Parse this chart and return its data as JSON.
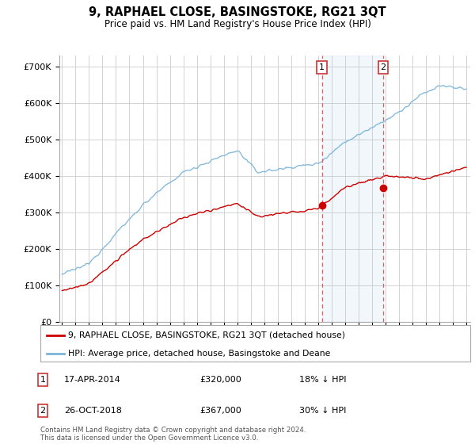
{
  "title": "9, RAPHAEL CLOSE, BASINGSTOKE, RG21 3QT",
  "subtitle": "Price paid vs. HM Land Registry's House Price Index (HPI)",
  "legend_line1": "9, RAPHAEL CLOSE, BASINGSTOKE, RG21 3QT (detached house)",
  "legend_line2": "HPI: Average price, detached house, Basingstoke and Deane",
  "annotation1_label": "1",
  "annotation1_date": "17-APR-2014",
  "annotation1_price": "£320,000",
  "annotation1_hpi": "18% ↓ HPI",
  "annotation1_year": 2014.29,
  "annotation1_value": 320000,
  "annotation2_label": "2",
  "annotation2_date": "26-OCT-2018",
  "annotation2_price": "£367,000",
  "annotation2_hpi": "30% ↓ HPI",
  "annotation2_year": 2018.83,
  "annotation2_value": 367000,
  "footer": "Contains HM Land Registry data © Crown copyright and database right 2024.\nThis data is licensed under the Open Government Licence v3.0.",
  "hpi_color": "#7ab4d8",
  "sale_color": "#cc0000",
  "vline_color": "#e06060",
  "shade_color": "#ddeeff",
  "background_color": "#ffffff",
  "plot_bg_color": "#ffffff",
  "grid_color": "#cccccc",
  "ylim": [
    0,
    730000
  ],
  "yticks": [
    0,
    100000,
    200000,
    300000,
    400000,
    500000,
    600000,
    700000
  ],
  "xlim_start": 1994.8,
  "xlim_end": 2025.3
}
